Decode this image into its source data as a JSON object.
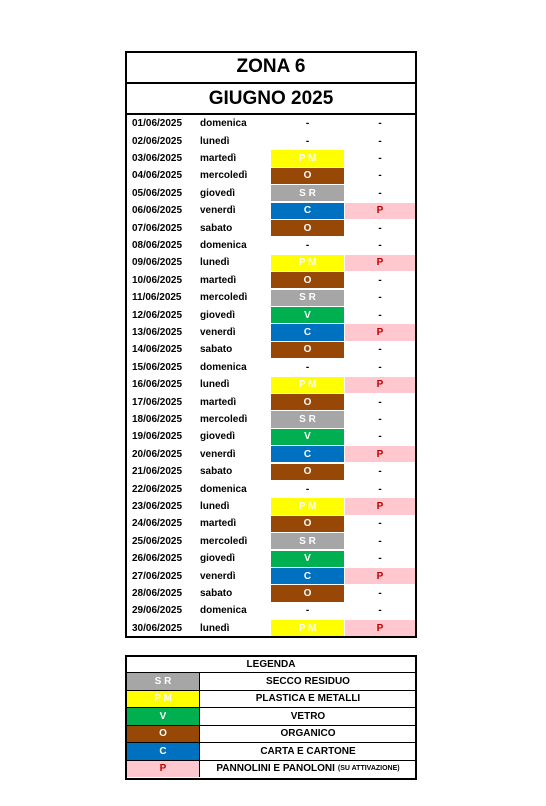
{
  "header": {
    "title": "ZONA 6",
    "subtitle": "GIUGNO 2025"
  },
  "table": {
    "rows": [
      [
        "01/06/2025",
        "domenica",
        "-",
        "-"
      ],
      [
        "02/06/2025",
        "lunedì",
        "-",
        "-"
      ],
      [
        "03/06/2025",
        "martedì",
        "P M",
        "-"
      ],
      [
        "04/06/2025",
        "mercoledì",
        "O",
        "-"
      ],
      [
        "05/06/2025",
        "giovedì",
        "S R",
        "-"
      ],
      [
        "06/06/2025",
        "venerdì",
        "C",
        "P"
      ],
      [
        "07/06/2025",
        "sabato",
        "O",
        "-"
      ],
      [
        "08/06/2025",
        "domenica",
        "-",
        "-"
      ],
      [
        "09/06/2025",
        "lunedì",
        "P M",
        "P"
      ],
      [
        "10/06/2025",
        "martedì",
        "O",
        "-"
      ],
      [
        "11/06/2025",
        "mercoledì",
        "S R",
        "-"
      ],
      [
        "12/06/2025",
        "giovedì",
        "V",
        "-"
      ],
      [
        "13/06/2025",
        "venerdì",
        "C",
        "P"
      ],
      [
        "14/06/2025",
        "sabato",
        "O",
        "-"
      ],
      [
        "15/06/2025",
        "domenica",
        "-",
        "-"
      ],
      [
        "16/06/2025",
        "lunedì",
        "P M",
        "P"
      ],
      [
        "17/06/2025",
        "martedì",
        "O",
        "-"
      ],
      [
        "18/06/2025",
        "mercoledì",
        "S R",
        "-"
      ],
      [
        "19/06/2025",
        "giovedì",
        "V",
        "-"
      ],
      [
        "20/06/2025",
        "venerdì",
        "C",
        "P"
      ],
      [
        "21/06/2025",
        "sabato",
        "O",
        "-"
      ],
      [
        "22/06/2025",
        "domenica",
        "-",
        "-"
      ],
      [
        "23/06/2025",
        "lunedì",
        "P M",
        "P"
      ],
      [
        "24/06/2025",
        "martedì",
        "O",
        "-"
      ],
      [
        "25/06/2025",
        "mercoledì",
        "S R",
        "-"
      ],
      [
        "26/06/2025",
        "giovedì",
        "V",
        "-"
      ],
      [
        "27/06/2025",
        "venerdì",
        "C",
        "P"
      ],
      [
        "28/06/2025",
        "sabato",
        "O",
        "-"
      ],
      [
        "29/06/2025",
        "domenica",
        "-",
        "-"
      ],
      [
        "30/06/2025",
        "lunedì",
        "P M",
        "P"
      ]
    ]
  },
  "legend": {
    "title": "LEGENDA",
    "items": [
      {
        "code": "S R",
        "label": "SECCO RESIDUO",
        "color": "#a6a6a6",
        "text_color": "#ffffff"
      },
      {
        "code": "P M",
        "label": "PLASTICA E METALLI",
        "color": "#ffff00",
        "text_color": "#ffffff"
      },
      {
        "code": "V",
        "label": "VETRO",
        "color": "#00b050",
        "text_color": "#ffffff"
      },
      {
        "code": "O",
        "label": "ORGANICO",
        "color": "#974806",
        "text_color": "#ffffff"
      },
      {
        "code": "C",
        "label": "CARTA E CARTONE",
        "color": "#0070c0",
        "text_color": "#ffffff"
      },
      {
        "code": "P",
        "label": "PANNOLINI E PANOLONI",
        "note": "(SU ATTIVAZIONE)",
        "color": "#ffc7ce",
        "text_color": "#c00000"
      }
    ]
  }
}
